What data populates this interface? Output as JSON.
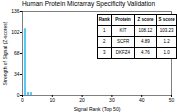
{
  "chart_data": {
    "type": "bar",
    "title": "Human Protein Micrarray Specificity Validation",
    "xlabel": "Signal Rank (Top 50)",
    "ylabel": "Strength of Signal (Z-scores)",
    "x": [
      1,
      2,
      3
    ],
    "values": [
      108.12,
      4.89,
      4.76
    ],
    "color": "#5bc8f5",
    "xlim": [
      0,
      50
    ],
    "xticks": [
      0,
      10,
      20,
      30,
      40,
      50
    ],
    "ylim": [
      0,
      136
    ],
    "yticks": [
      0,
      34,
      68,
      102,
      136
    ],
    "grid": false,
    "table": {
      "headers": [
        "Rank",
        "Protein",
        "Z score",
        "S score"
      ],
      "rows": [
        [
          "1",
          "KIT",
          "108.12",
          "103.23"
        ],
        [
          "2",
          "SCFR",
          "4.89",
          "1.2"
        ],
        [
          "3",
          "DKFZ4",
          "4.76",
          "1.0"
        ]
      ]
    }
  }
}
